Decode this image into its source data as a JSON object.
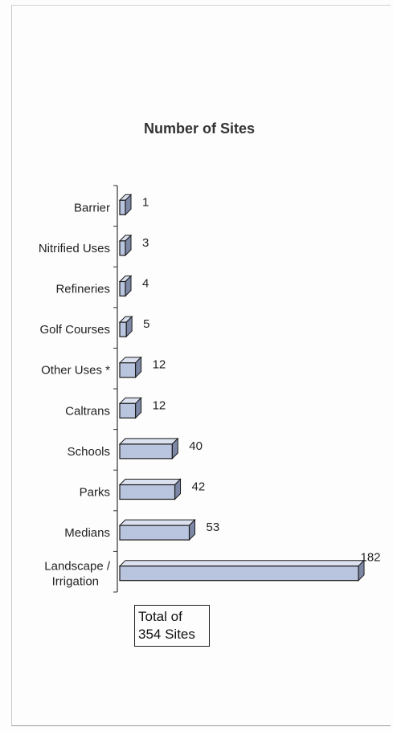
{
  "chart_data": {
    "type": "bar",
    "orientation": "horizontal",
    "title": "Number of Sites",
    "categories": [
      "Barrier",
      "Nitrified Uses",
      "Refineries",
      "Golf Courses",
      "Other Uses *",
      "Caltrans",
      "Schools",
      "Parks",
      "Medians",
      "Landscape / Irrigation"
    ],
    "values": [
      1,
      3,
      4,
      5,
      12,
      12,
      40,
      42,
      53,
      182
    ],
    "xlim": [
      0,
      182
    ],
    "grid": false,
    "bar_color": "#b9c4de",
    "bar_edge_color": "#1a1a1a"
  },
  "annotation": {
    "line1": "Total of",
    "line2": "354 Sites"
  }
}
